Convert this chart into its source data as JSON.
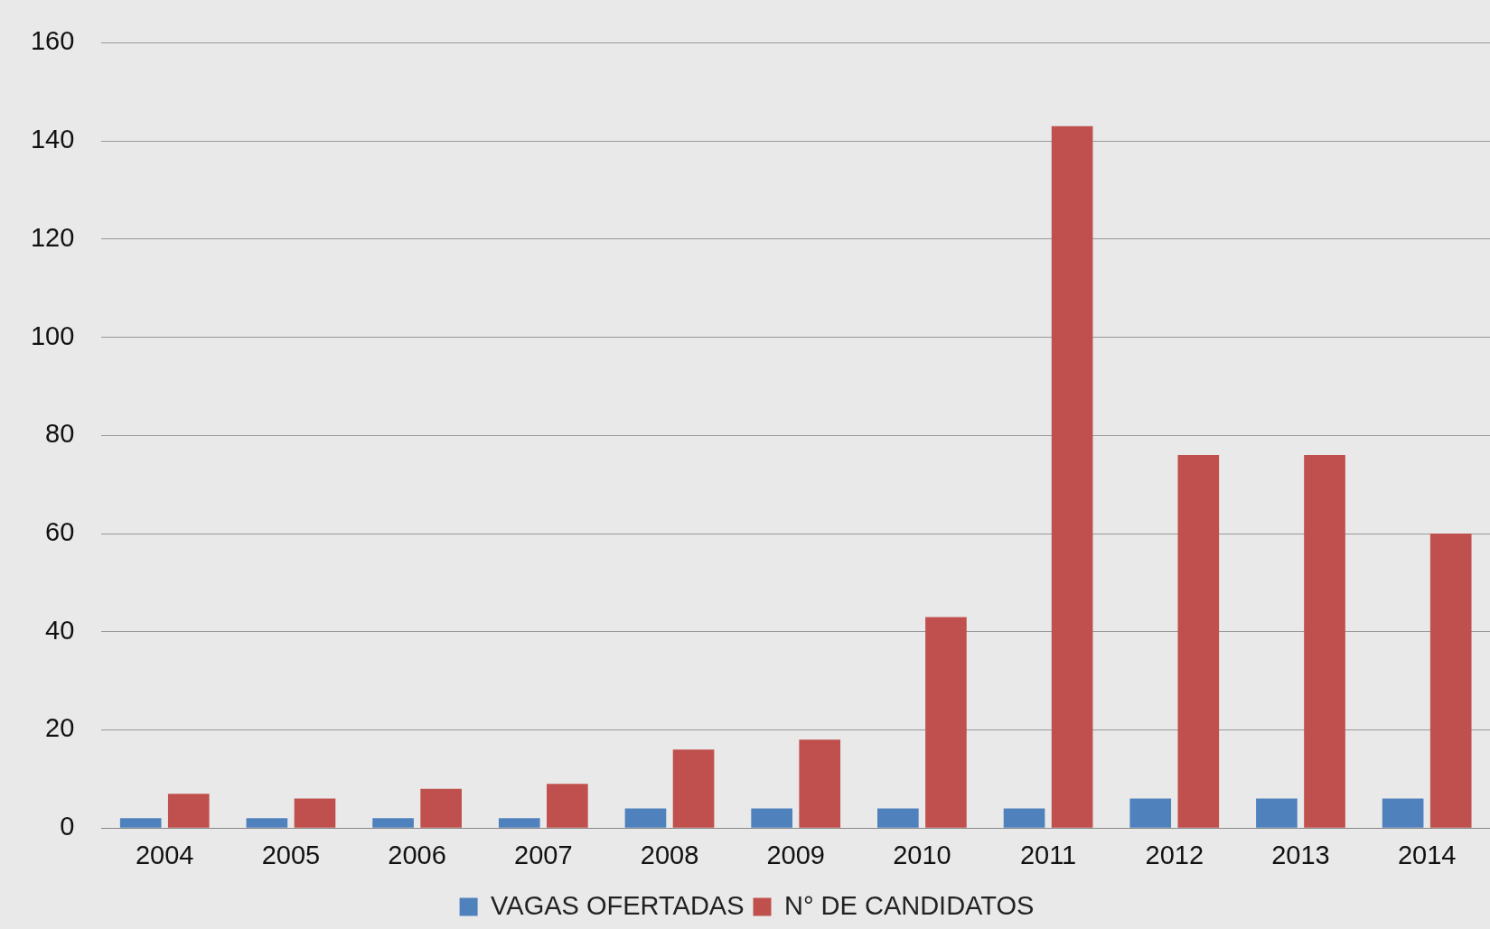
{
  "chart_data": {
    "type": "bar",
    "categories": [
      "2004",
      "2005",
      "2006",
      "2007",
      "2008",
      "2009",
      "2010",
      "2011",
      "2012",
      "2013",
      "2014"
    ],
    "series": [
      {
        "name": "VAGAS OFERTADAS",
        "color": "#4f81bd",
        "values": [
          2,
          2,
          2,
          2,
          4,
          4,
          4,
          4,
          6,
          6,
          6
        ]
      },
      {
        "name": "N° DE CANDIDATOS",
        "color": "#c0504d",
        "values": [
          7,
          6,
          8,
          9,
          16,
          18,
          43,
          143,
          76,
          76,
          60
        ]
      }
    ],
    "ylim": [
      0,
      160
    ],
    "yticks": [
      0,
      20,
      40,
      60,
      80,
      100,
      120,
      140,
      160
    ],
    "grid": "y",
    "legend": "bottom"
  }
}
